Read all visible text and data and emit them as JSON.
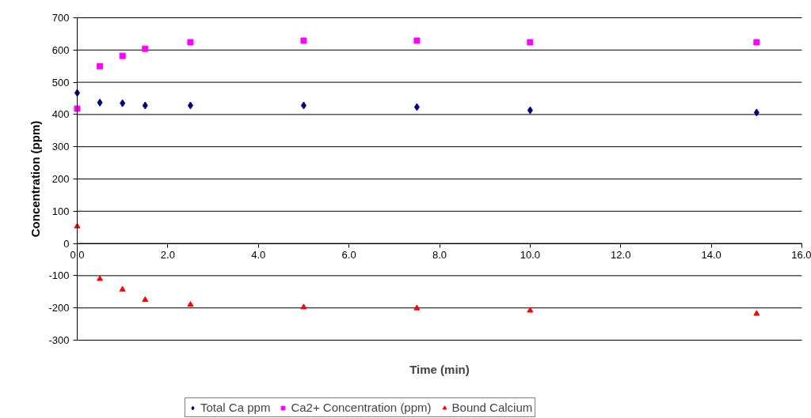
{
  "chart_data": {
    "type": "scatter",
    "xlabel": "Time (min)",
    "ylabel": "Concentration (ppm)",
    "x": [
      0,
      0.5,
      1,
      1.5,
      2.5,
      5,
      7.5,
      10,
      15
    ],
    "series": [
      {
        "name": "Total Ca ppm",
        "color": "#000080",
        "marker": "diamond",
        "values": [
          467,
          437,
          435,
          428,
          428,
          428,
          423,
          413,
          406
        ]
      },
      {
        "name": "Ca2+ Concentration (ppm)",
        "color": "#ff00ff",
        "marker": "square",
        "values": [
          418,
          550,
          582,
          604,
          624,
          629,
          629,
          624,
          624
        ]
      },
      {
        "name": "Bound Calcium",
        "color": "#ff0000",
        "marker": "triangle",
        "values": [
          53,
          -110,
          -143,
          -175,
          -190,
          -198,
          -201,
          -208,
          -218
        ]
      }
    ],
    "xlim": [
      0,
      16
    ],
    "ylim": [
      -300,
      700
    ],
    "xticks": [
      {
        "value": 0,
        "label": "0.0"
      },
      {
        "value": 2,
        "label": "2.0"
      },
      {
        "value": 4,
        "label": "4.0"
      },
      {
        "value": 6,
        "label": "6.0"
      },
      {
        "value": 8,
        "label": "8.0"
      },
      {
        "value": 10,
        "label": "10.0"
      },
      {
        "value": 12,
        "label": "12.0"
      },
      {
        "value": 14,
        "label": "14.0"
      },
      {
        "value": 16,
        "label": "16.0"
      }
    ],
    "yticks": [
      -300,
      -200,
      -100,
      0,
      100,
      200,
      300,
      400,
      500,
      600,
      700
    ],
    "grid": "y",
    "legend": "bottom"
  }
}
